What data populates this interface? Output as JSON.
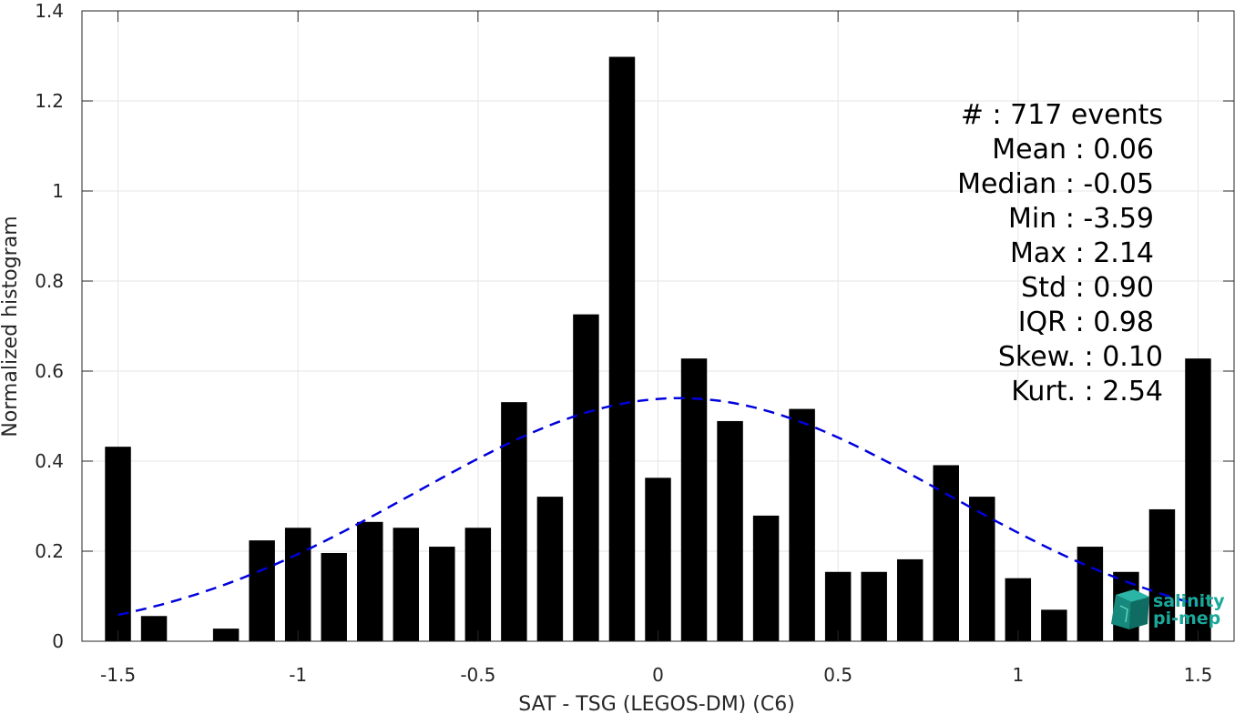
{
  "chart_data": {
    "type": "bar",
    "xlabel": "SAT - TSG (LEGOS-DM) (C6)",
    "ylabel": "Normalized histogram",
    "xlim": [
      -1.6,
      1.6
    ],
    "ylim": [
      0,
      1.4
    ],
    "xticks": [
      -1.5,
      -1,
      -0.5,
      0,
      0.5,
      1,
      1.5
    ],
    "xtick_labels": [
      "-1.5",
      "-1",
      "-0.5",
      "0",
      "0.5",
      "1",
      "1.5"
    ],
    "yticks": [
      0,
      0.2,
      0.4,
      0.6,
      0.8,
      1,
      1.2,
      1.4
    ],
    "ytick_labels": [
      "0",
      "0.2",
      "0.4",
      "0.6",
      "0.8",
      "1",
      "1.2",
      "1.4"
    ],
    "grid": true,
    "bin_width": 0.1,
    "bar_color": "#000000",
    "bins": [
      {
        "x": -1.5,
        "y": 0.432
      },
      {
        "x": -1.4,
        "y": 0.056
      },
      {
        "x": -1.3,
        "y": 0.0
      },
      {
        "x": -1.2,
        "y": 0.028
      },
      {
        "x": -1.1,
        "y": 0.224
      },
      {
        "x": -1.0,
        "y": 0.252
      },
      {
        "x": -0.9,
        "y": 0.196
      },
      {
        "x": -0.8,
        "y": 0.265
      },
      {
        "x": -0.7,
        "y": 0.252
      },
      {
        "x": -0.6,
        "y": 0.21
      },
      {
        "x": -0.5,
        "y": 0.252
      },
      {
        "x": -0.4,
        "y": 0.531
      },
      {
        "x": -0.3,
        "y": 0.321
      },
      {
        "x": -0.2,
        "y": 0.726
      },
      {
        "x": -0.1,
        "y": 1.298
      },
      {
        "x": 0.0,
        "y": 0.363
      },
      {
        "x": 0.1,
        "y": 0.628
      },
      {
        "x": 0.2,
        "y": 0.489
      },
      {
        "x": 0.3,
        "y": 0.279
      },
      {
        "x": 0.4,
        "y": 0.516
      },
      {
        "x": 0.5,
        "y": 0.154
      },
      {
        "x": 0.6,
        "y": 0.154
      },
      {
        "x": 0.7,
        "y": 0.182
      },
      {
        "x": 0.8,
        "y": 0.391
      },
      {
        "x": 0.9,
        "y": 0.321
      },
      {
        "x": 1.0,
        "y": 0.14
      },
      {
        "x": 1.1,
        "y": 0.07
      },
      {
        "x": 1.2,
        "y": 0.21
      },
      {
        "x": 1.3,
        "y": 0.154
      },
      {
        "x": 1.4,
        "y": 0.293
      },
      {
        "x": 1.5,
        "y": 0.628
      }
    ],
    "fit_curve": {
      "style": "dashed",
      "color": "#0000dd",
      "mean": 0.06,
      "std": 0.74,
      "peak": 0.54,
      "x_range": [
        -1.5,
        1.5
      ]
    },
    "stats": [
      "#  : 717 events",
      "Mean : 0.06",
      "Median : -0.05",
      "Min : -3.59",
      "Max : 2.14",
      "Std : 0.90",
      "IQR : 0.98",
      "Skew. : 0.10",
      "Kurt. : 2.54"
    ]
  },
  "logo": {
    "line1": "salinity",
    "line2": "pi-mep",
    "color": "#1aa89a"
  }
}
